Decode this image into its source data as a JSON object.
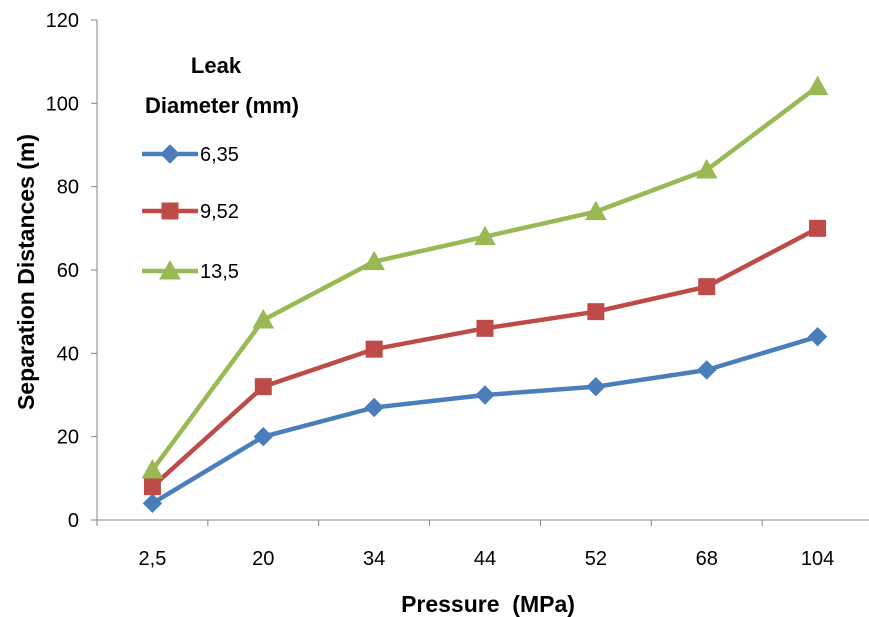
{
  "chart_data": {
    "type": "line",
    "title": "",
    "xlabel": "Pressure  (MPa)",
    "ylabel": "Separation Distances (m)",
    "categories": [
      "2,5",
      "20",
      "34",
      "44",
      "52",
      "68",
      "104"
    ],
    "ylim": [
      0,
      120
    ],
    "yticks": [
      "0",
      "20",
      "40",
      "60",
      "80",
      "100",
      "120"
    ],
    "grid": false,
    "legend": {
      "title_lines": [
        "Leak",
        "Diameter (mm)"
      ],
      "position": "top-left"
    },
    "series": [
      {
        "name": "6,35",
        "values": [
          4,
          20,
          27,
          30,
          32,
          36,
          44
        ],
        "color": "#4a7ebb",
        "marker": "diamond"
      },
      {
        "name": "9,52",
        "values": [
          8,
          32,
          41,
          46,
          50,
          56,
          70
        ],
        "color": "#be4b48",
        "marker": "square"
      },
      {
        "name": "13,5",
        "values": [
          12,
          48,
          62,
          68,
          74,
          84,
          104
        ],
        "color": "#98b954",
        "marker": "triangle"
      }
    ]
  }
}
